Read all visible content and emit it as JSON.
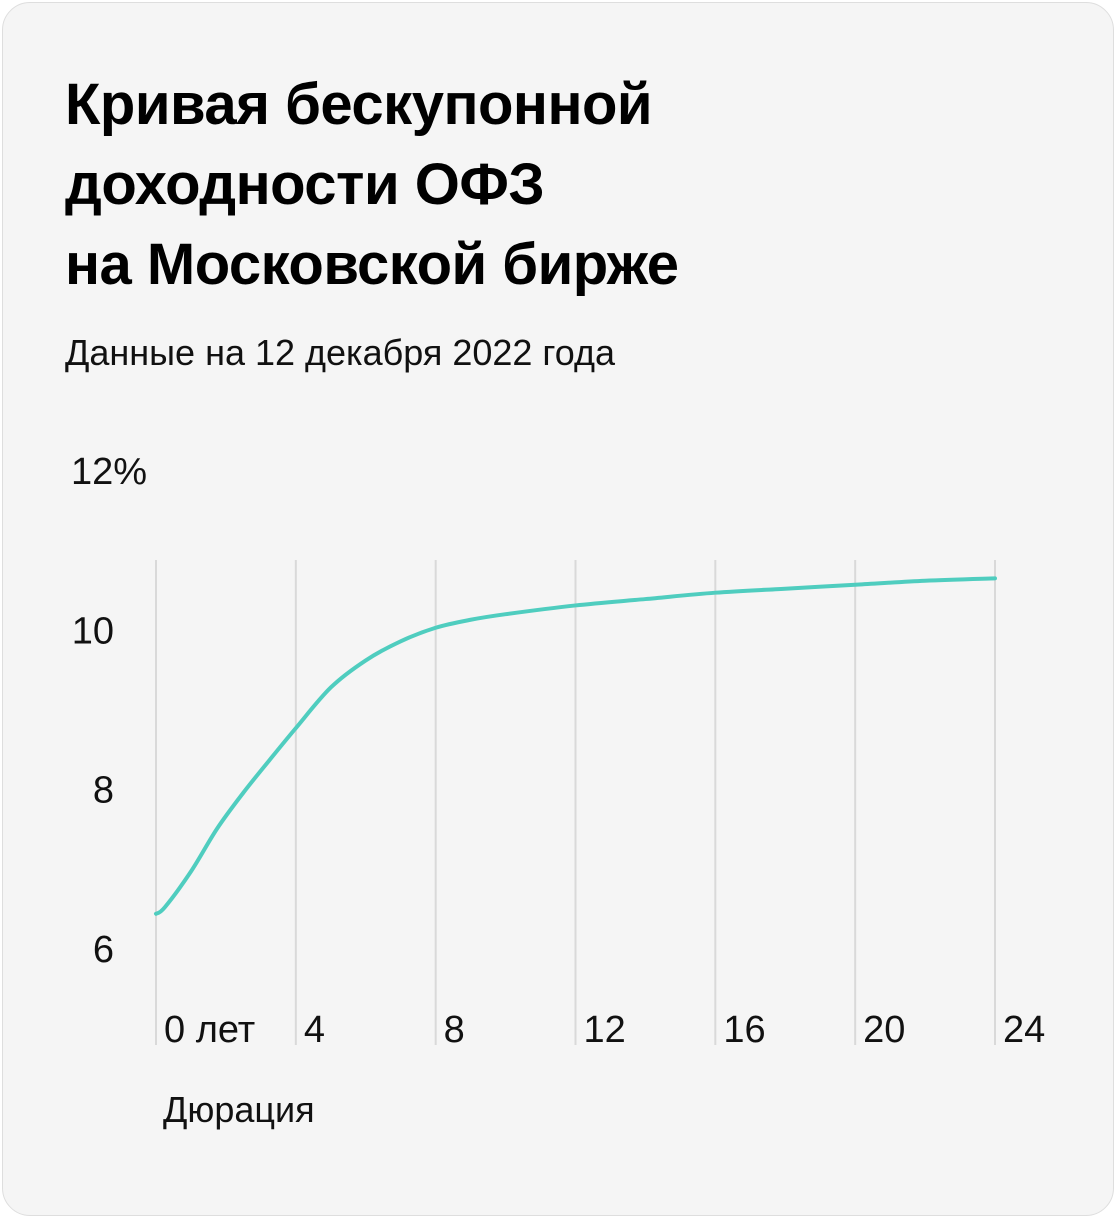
{
  "header": {
    "title_lines": [
      "Кривая бескупонной",
      "доходности ОФЗ",
      "на Московской бирже"
    ],
    "subtitle": "Данные на 12 декабря 2022 года"
  },
  "colors": {
    "line": "#4fcdbf",
    "grid": "#d9d9d9",
    "card_bg": "#f5f5f5",
    "text": "#111111"
  },
  "chart_data": {
    "type": "line",
    "title": "Кривая бескупонной доходности ОФЗ на Московской бирже",
    "subtitle": "Данные на 12 декабря 2022 года",
    "xlabel": "Дюрация",
    "ylabel": "",
    "xlim": [
      0,
      24
    ],
    "ylim": [
      6,
      12
    ],
    "x_ticks": [
      0,
      4,
      8,
      12,
      16,
      20,
      24
    ],
    "x_tick_labels": [
      "0 лет",
      "4",
      "8",
      "12",
      "16",
      "20",
      "24"
    ],
    "y_ticks": [
      6,
      8,
      10,
      12
    ],
    "y_tick_labels": [
      "6",
      "8",
      "10",
      "12%"
    ],
    "grid": "vertical",
    "series": [
      {
        "x": [
          0,
          0.25,
          1,
          1.75,
          2.5,
          3.25,
          4,
          5,
          6,
          7,
          8,
          9,
          10,
          12,
          14,
          16,
          18,
          20,
          22,
          24
        ],
        "y": [
          6.43,
          6.51,
          6.96,
          7.5,
          7.95,
          8.36,
          8.76,
          9.27,
          9.61,
          9.85,
          10.02,
          10.12,
          10.19,
          10.3,
          10.38,
          10.46,
          10.51,
          10.56,
          10.61,
          10.64
        ]
      }
    ]
  }
}
